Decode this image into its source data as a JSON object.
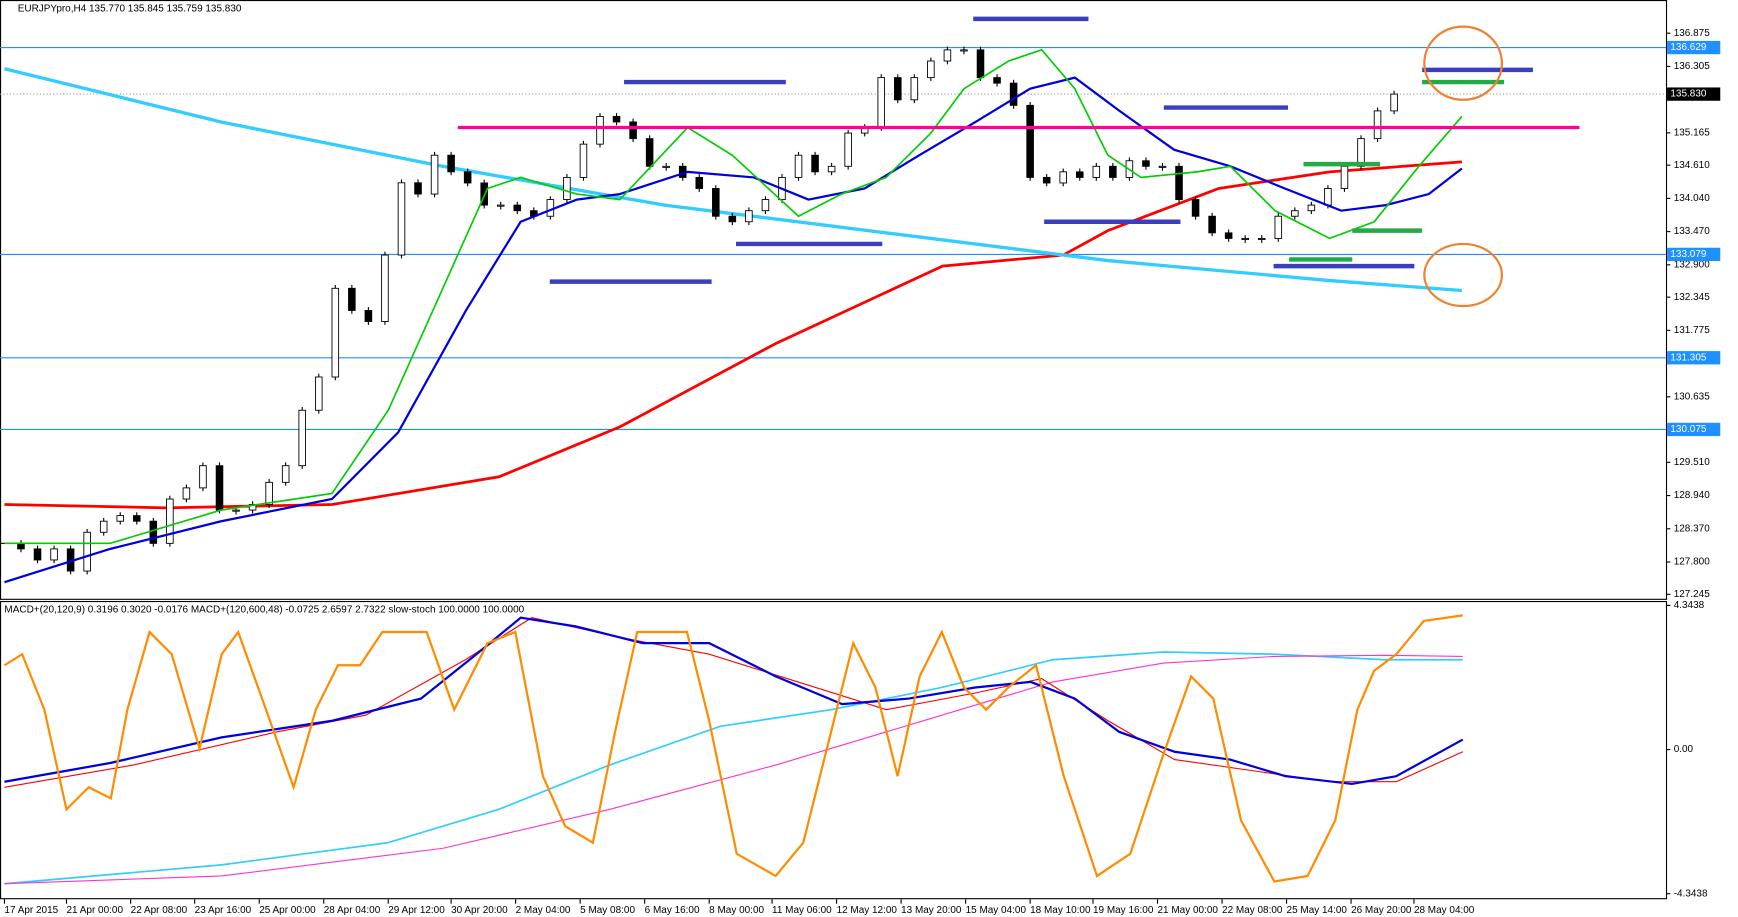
{
  "chart_data": {
    "type": "candlestick",
    "title": "EURJPYpro,H4  135.770 135.845 135.759 135.830",
    "close": [
      128.12,
      128.025,
      127.835,
      128.025,
      127.645,
      128.31,
      128.5,
      128.596,
      128.5,
      128.12,
      128.881,
      129.072,
      129.453,
      128.691,
      128.691,
      128.786,
      129.167,
      129.453,
      130.404,
      130.975,
      132.497,
      132.117,
      131.927,
      133.068,
      134.308,
      134.115,
      134.781,
      134.496,
      134.305,
      133.925,
      133.925,
      133.829,
      133.734,
      134.02,
      134.4,
      134.971,
      135.447,
      135.352,
      135.066,
      134.591,
      134.591,
      134.4,
      134.21,
      133.734,
      133.639,
      133.829,
      134.02,
      134.4,
      134.781,
      134.496,
      134.591,
      135.161,
      135.257,
      136.113,
      135.732,
      136.113,
      136.398,
      136.589,
      136.589,
      136.113,
      136.018,
      135.637,
      134.4,
      134.305,
      134.496,
      134.4,
      134.591,
      134.4,
      134.686,
      134.591,
      134.591,
      134.02,
      133.734,
      133.449,
      133.353,
      133.353,
      133.353,
      133.734,
      133.829,
      133.925,
      134.21,
      134.591,
      135.066,
      135.542,
      135.83
    ],
    "xlim": [
      0,
      100.5
    ],
    "xticks": [
      {
        "value": 0,
        "label": "17 Apr 2015"
      },
      {
        "value": 3.75,
        "label": "21 Apr 00:00"
      },
      {
        "value": 7.63,
        "label": "22 Apr 08:00"
      },
      {
        "value": 11.5,
        "label": "23 Apr 16:00"
      },
      {
        "value": 15.4,
        "label": "25 Apr 00:00"
      },
      {
        "value": 19.3,
        "label": "28 Apr 04:00"
      },
      {
        "value": 23.2,
        "label": "29 Apr 12:00"
      },
      {
        "value": 27.0,
        "label": "30 Apr 20:00"
      },
      {
        "value": 30.9,
        "label": "2 May 04:00"
      },
      {
        "value": 34.8,
        "label": "5 May 08:00"
      },
      {
        "value": 38.7,
        "label": "6 May 16:00"
      },
      {
        "value": 42.6,
        "label": "8 May 00:00"
      },
      {
        "value": 46.4,
        "label": "11 May 06:00"
      },
      {
        "value": 50.3,
        "label": "12 May 12:00"
      },
      {
        "value": 54.2,
        "label": "13 May 20:00"
      },
      {
        "value": 58.1,
        "label": "15 May 04:00"
      },
      {
        "value": 62.0,
        "label": "18 May 10:00"
      },
      {
        "value": 65.8,
        "label": "19 May 16:00"
      },
      {
        "value": 69.7,
        "label": "21 May 00:00"
      },
      {
        "value": 73.6,
        "label": "22 May 08:00"
      },
      {
        "value": 77.5,
        "label": "25 May 14:00"
      },
      {
        "value": 81.4,
        "label": "26 May 20:00"
      },
      {
        "value": 85.2,
        "label": "28 May 04:00"
      }
    ],
    "ylim": [
      127.131,
      137.445
    ],
    "yticks": [
      136.875,
      136.305,
      135.165,
      {
        "value": 134.61,
        "label": "134.610"
      },
      {
        "value": 134.04,
        "label": "134.040"
      },
      {
        "value": 133.47,
        "label": "133.470"
      },
      {
        "value": 132.9,
        "label": "132.900"
      },
      132.345,
      131.775,
      130.635,
      {
        "value": 129.51,
        "label": "129.510"
      },
      {
        "value": 128.94,
        "label": "128.940"
      },
      {
        "value": 128.37,
        "label": "128.370"
      },
      {
        "value": 127.8,
        "label": "127.800"
      },
      127.245
    ],
    "levels": {
      "color": "#1e90ff",
      "values": [
        136.629,
        133.079,
        131.305,
        130.075
      ]
    },
    "last_price": {
      "value": 135.83,
      "label": "135.830"
    },
    "series": [
      {
        "color": "#ff0000",
        "width": 2.5,
        "x": [
          0,
          9.8,
          19.8,
          29.9,
          37.2,
          46.6,
          56.7,
          64.0,
          66.7,
          73.4,
          80.1,
          88.1
        ],
        "values": [
          128.786,
          128.73,
          128.786,
          129.262,
          130.118,
          131.546,
          132.878,
          133.068,
          133.487,
          134.21,
          134.496,
          134.667
        ]
      },
      {
        "color": "#33ccff",
        "width": 3,
        "x": [
          0,
          13.1,
          26.5,
          39.9,
          53.3,
          66.7,
          80.1,
          88.1
        ],
        "values": [
          136.265,
          135.352,
          134.591,
          133.925,
          133.449,
          132.973,
          132.63,
          132.459
        ]
      },
      {
        "color": "#0000dd",
        "width": 2,
        "x": [
          0,
          6.4,
          13.1,
          19.8,
          23.8,
          27.9,
          31.2,
          34.6,
          37.2,
          41.3,
          45.3,
          48.6,
          52.0,
          55.3,
          58.7,
          62.0,
          64.7,
          67.4,
          70.7,
          74.1,
          77.4,
          80.8,
          83.5,
          86.1,
          88.1
        ],
        "values": [
          127.454,
          128.025,
          128.5,
          128.881,
          130.023,
          132.117,
          133.639,
          134.02,
          134.115,
          134.496,
          134.4,
          134.02,
          134.21,
          134.781,
          135.352,
          135.923,
          136.113,
          135.542,
          134.876,
          134.591,
          134.21,
          133.829,
          133.925,
          134.115,
          134.553
        ]
      },
      {
        "color": "#00cc00",
        "width": 1.5,
        "x": [
          0,
          6.4,
          13.1,
          19.8,
          23.2,
          26.5,
          29.2,
          31.2,
          34.6,
          37.2,
          41.3,
          44.0,
          48.0,
          50.6,
          53.3,
          56.0,
          58.0,
          60.7,
          62.7,
          64.7,
          66.7,
          68.7,
          72.1,
          74.1,
          76.8,
          80.1,
          82.8,
          85.5,
          88.1
        ],
        "values": [
          128.12,
          128.12,
          128.691,
          128.976,
          130.404,
          132.497,
          134.21,
          134.4,
          134.115,
          134.02,
          135.257,
          134.781,
          133.734,
          134.115,
          134.4,
          135.161,
          135.923,
          136.398,
          136.589,
          135.923,
          134.781,
          134.4,
          134.496,
          134.591,
          133.829,
          133.353,
          133.639,
          134.591,
          135.447
        ]
      }
    ],
    "indicator": {
      "title": "MACD+(20,120,9) 0.3196 0.3020 -0.0176  MACD+(120,600,48) -0.0725 2.6597 2.7322  slow-stoch 100.0000 100.0000",
      "ylim": [
        -4.511,
        4.511
      ],
      "yticks": [
        4.3438,
        {
          "value": 0,
          "label": "0.00"
        },
        -4.3438
      ],
      "series": [
        {
          "color": "#33ccff",
          "width": 1.5,
          "x": [
            0,
            13.13,
            23.18,
            29.87,
            36.57,
            43.27,
            49.97,
            56.66,
            63.36,
            70.06,
            76.76,
            83.46,
            88.15
          ],
          "values": [
            -4.043,
            -3.475,
            -2.807,
            -1.804,
            -0.468,
            0.702,
            1.203,
            1.871,
            2.707,
            2.94,
            2.874,
            2.707,
            2.707
          ]
        },
        {
          "color": "#ff33cc",
          "width": 1,
          "x": [
            0,
            13.13,
            26.52,
            36.57,
            46.62,
            56.66,
            63.36,
            70.06,
            76.76,
            83.46,
            88.15
          ],
          "values": [
            -4.043,
            -3.809,
            -2.974,
            -1.804,
            -0.468,
            1.036,
            2.038,
            2.606,
            2.807,
            2.84,
            2.807
          ]
        },
        {
          "color": "#ff0000",
          "width": 1,
          "x": [
            0,
            7.77,
            16.48,
            21.84,
            27.86,
            31.88,
            37.24,
            42.6,
            47.96,
            53.32,
            58.68,
            62.7,
            66.71,
            70.73,
            75.42,
            80.1,
            84.13,
            88.15
          ],
          "values": [
            -1.136,
            -0.468,
            0.535,
            1.036,
            2.707,
            3.976,
            3.375,
            2.874,
            2.038,
            1.203,
            1.704,
            2.138,
            0.869,
            -0.301,
            -0.635,
            -0.969,
            -0.969,
            -0.067
          ]
        },
        {
          "color": "#0000dd",
          "width": 2,
          "x": [
            0,
            6.43,
            13.13,
            19.82,
            25.18,
            28.53,
            31.21,
            34.56,
            38.58,
            42.6,
            46.62,
            50.64,
            54.66,
            58.68,
            62.03,
            64.7,
            67.38,
            70.73,
            74.08,
            77.43,
            81.45,
            84.13,
            88.15
          ],
          "values": [
            -0.969,
            -0.401,
            0.368,
            0.869,
            1.537,
            2.874,
            3.976,
            3.709,
            3.208,
            3.208,
            2.205,
            1.37,
            1.537,
            1.871,
            2.038,
            1.537,
            0.535,
            -0.067,
            -0.301,
            -0.802,
            -1.036,
            -0.802,
            0.301
          ]
        },
        {
          "color": "#ff8c00",
          "width": 2,
          "x": [
            0,
            1.07,
            2.41,
            3.75,
            5.09,
            6.43,
            7.43,
            8.77,
            10.11,
            11.79,
            13.13,
            14.13,
            15.81,
            17.48,
            18.82,
            20.16,
            21.5,
            22.84,
            24.18,
            25.52,
            27.19,
            29.2,
            30.88,
            32.55,
            33.89,
            35.57,
            36.91,
            38.25,
            41.26,
            42.6,
            44.27,
            46.62,
            48.29,
            49.97,
            51.31,
            52.65,
            53.99,
            55.32,
            56.66,
            58.0,
            59.34,
            60.68,
            62.36,
            64.03,
            66.04,
            68.05,
            70.06,
            71.73,
            73.07,
            74.75,
            76.76,
            78.77,
            80.44,
            81.78,
            82.79,
            84.13,
            85.8,
            88.15
          ],
          "values": [
            2.539,
            2.874,
            1.203,
            -1.804,
            -1.136,
            -1.47,
            1.203,
            3.542,
            2.874,
            0.033,
            2.874,
            3.542,
            1.203,
            -1.136,
            1.203,
            2.539,
            2.539,
            3.542,
            3.542,
            3.542,
            1.203,
            3.208,
            3.542,
            -0.802,
            -2.306,
            -2.807,
            0.535,
            3.542,
            3.542,
            0.869,
            -3.141,
            -3.809,
            -2.807,
            0.535,
            3.208,
            1.871,
            -0.802,
            2.205,
            3.542,
            1.871,
            1.203,
            1.871,
            2.539,
            -0.802,
            -3.809,
            -3.141,
            -0.134,
            2.205,
            1.537,
            -2.138,
            -3.976,
            -3.809,
            -2.138,
            1.203,
            2.372,
            2.874,
            3.876,
            4.043
          ]
        }
      ]
    }
  }
}
